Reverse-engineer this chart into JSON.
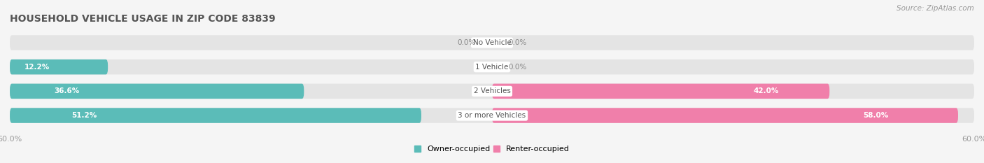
{
  "title": "HOUSEHOLD VEHICLE USAGE IN ZIP CODE 83839",
  "source": "Source: ZipAtlas.com",
  "categories": [
    "No Vehicle",
    "1 Vehicle",
    "2 Vehicles",
    "3 or more Vehicles"
  ],
  "owner_values": [
    0.0,
    12.2,
    36.6,
    51.2
  ],
  "renter_values": [
    0.0,
    0.0,
    42.0,
    58.0
  ],
  "owner_color": "#5bbcb8",
  "renter_color": "#f07faa",
  "label_color_dark": "#888888",
  "label_color_light": "#ffffff",
  "axis_max": 60.0,
  "bar_height": 0.62,
  "background_color": "#f5f5f5",
  "bar_bg_color": "#e4e4e4",
  "title_fontsize": 10,
  "source_fontsize": 7.5,
  "tick_fontsize": 8,
  "legend_fontsize": 8,
  "label_fontsize": 7.5,
  "category_fontsize": 7.5
}
